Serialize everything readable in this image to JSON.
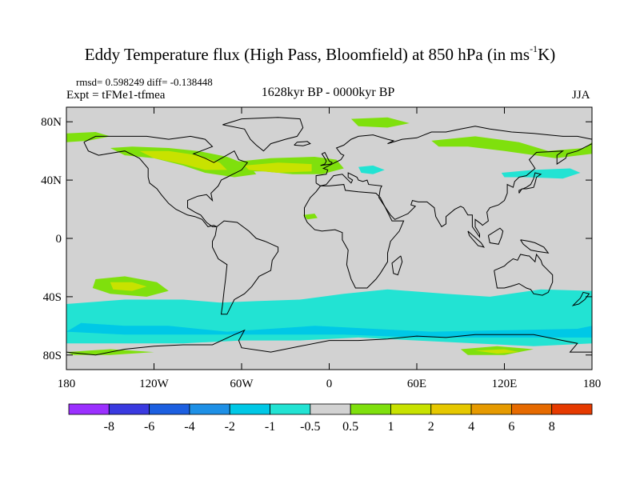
{
  "title": {
    "main": "Eddy Temperature flux (High Pass, Bloomfield) at 850 hPa (in ms",
    "sup": "-1",
    "end": "K)"
  },
  "stats": "rmsd= 0.598249 diff= -0.138448",
  "expt": "Expt = tFMe1-tfmea",
  "period": "1628kyr BP - 0000kyr BP",
  "season": "JJA",
  "map": {
    "lat_range": [
      -90,
      90
    ],
    "lon_range": [
      -180,
      180
    ],
    "lat_ticks": [
      {
        "value": 80,
        "label": "80N"
      },
      {
        "value": 40,
        "label": "40N"
      },
      {
        "value": 0,
        "label": "0"
      },
      {
        "value": -40,
        "label": "40S"
      },
      {
        "value": -80,
        "label": "80S"
      }
    ],
    "lon_ticks": [
      {
        "value": -180,
        "label": "180"
      },
      {
        "value": -120,
        "label": "120W"
      },
      {
        "value": -60,
        "label": "60W"
      },
      {
        "value": 0,
        "label": "0"
      },
      {
        "value": 60,
        "label": "60E"
      },
      {
        "value": 120,
        "label": "120E"
      },
      {
        "value": 180,
        "label": "180"
      }
    ],
    "background_color": "#d2d2d2",
    "coast_color": "#000000"
  },
  "colorbar": {
    "colors": [
      "#9b30ff",
      "#3a3ae0",
      "#1c5fe0",
      "#1e90e6",
      "#00c8e6",
      "#22e3d3",
      "#d2d2d2",
      "#7fe00d",
      "#c8e200",
      "#e6c800",
      "#e69a00",
      "#e66a00",
      "#e63a00"
    ],
    "labels": [
      "-8",
      "-6",
      "-4",
      "-2",
      "-1",
      "-0.5",
      "0.5",
      "1",
      "2",
      "4",
      "6",
      "8"
    ]
  },
  "regions": [
    {
      "name": "north-america-high",
      "level": "1",
      "color": "#7fe00d",
      "points": [
        [
          -150,
          62
        ],
        [
          -135,
          63
        ],
        [
          -110,
          62
        ],
        [
          -90,
          60
        ],
        [
          -70,
          56
        ],
        [
          -55,
          50
        ],
        [
          -50,
          44
        ],
        [
          -65,
          42
        ],
        [
          -85,
          45
        ],
        [
          -100,
          50
        ],
        [
          -120,
          55
        ],
        [
          -140,
          57
        ]
      ]
    },
    {
      "name": "north-america-core",
      "level": "2",
      "color": "#c8e200",
      "points": [
        [
          -130,
          60
        ],
        [
          -110,
          60
        ],
        [
          -90,
          57
        ],
        [
          -75,
          52
        ],
        [
          -70,
          47
        ],
        [
          -85,
          47
        ],
        [
          -100,
          51
        ],
        [
          -120,
          55
        ]
      ]
    },
    {
      "name": "north-atlantic-high",
      "level": "1",
      "color": "#7fe00d",
      "points": [
        [
          -70,
          52
        ],
        [
          -40,
          55
        ],
        [
          -10,
          56
        ],
        [
          5,
          54
        ],
        [
          10,
          48
        ],
        [
          -5,
          44
        ],
        [
          -25,
          44
        ],
        [
          -45,
          46
        ],
        [
          -62,
          46
        ]
      ]
    },
    {
      "name": "north-atlantic-core",
      "level": "2",
      "color": "#c8e200",
      "points": [
        [
          -58,
          50
        ],
        [
          -35,
          52
        ],
        [
          -12,
          51
        ],
        [
          -12,
          46
        ],
        [
          -35,
          45
        ],
        [
          -55,
          47
        ]
      ]
    },
    {
      "name": "arctic-west",
      "level": "1",
      "color": "#7fe00d",
      "points": [
        [
          -180,
          72
        ],
        [
          -160,
          73
        ],
        [
          -150,
          70
        ],
        [
          -165,
          67
        ],
        [
          -180,
          66
        ]
      ]
    },
    {
      "name": "arctic-scandinavia",
      "level": "1",
      "color": "#7fe00d",
      "points": [
        [
          15,
          82
        ],
        [
          40,
          83
        ],
        [
          55,
          79
        ],
        [
          40,
          76
        ],
        [
          20,
          77
        ]
      ]
    },
    {
      "name": "siberia-band",
      "level": "1",
      "color": "#7fe00d",
      "points": [
        [
          70,
          67
        ],
        [
          100,
          70
        ],
        [
          130,
          66
        ],
        [
          150,
          60
        ],
        [
          175,
          62
        ],
        [
          180,
          66
        ],
        [
          180,
          58
        ],
        [
          155,
          55
        ],
        [
          120,
          60
        ],
        [
          95,
          63
        ],
        [
          75,
          63
        ]
      ]
    },
    {
      "name": "pacific-nw-flux",
      "level": "-1",
      "color": "#22e3d3",
      "points": [
        [
          118,
          45
        ],
        [
          140,
          47
        ],
        [
          165,
          48
        ],
        [
          172,
          45
        ],
        [
          160,
          41
        ],
        [
          135,
          42
        ],
        [
          120,
          42
        ]
      ]
    },
    {
      "name": "atlantic-neg",
      "level": "-1",
      "color": "#22e3d3",
      "points": [
        [
          20,
          49
        ],
        [
          30,
          50
        ],
        [
          38,
          47
        ],
        [
          30,
          44
        ],
        [
          22,
          45
        ]
      ]
    },
    {
      "name": "west-african-flux",
      "level": "1",
      "color": "#7fe00d",
      "points": [
        [
          -18,
          16
        ],
        [
          -10,
          17
        ],
        [
          -8,
          14
        ],
        [
          -15,
          13
        ]
      ]
    },
    {
      "name": "south-pacific-high",
      "level": "1",
      "color": "#7fe00d",
      "points": [
        [
          -160,
          -28
        ],
        [
          -140,
          -26
        ],
        [
          -118,
          -30
        ],
        [
          -110,
          -36
        ],
        [
          -125,
          -40
        ],
        [
          -150,
          -38
        ],
        [
          -162,
          -34
        ]
      ]
    },
    {
      "name": "south-pacific-core",
      "level": "2",
      "color": "#c8e200",
      "points": [
        [
          -150,
          -30
        ],
        [
          -135,
          -30
        ],
        [
          -125,
          -33
        ],
        [
          -135,
          -36
        ],
        [
          -148,
          -35
        ]
      ]
    },
    {
      "name": "southern-ocean-band",
      "level": "-1",
      "color": "#22e3d3",
      "points": [
        [
          -180,
          -45
        ],
        [
          -140,
          -42
        ],
        [
          -100,
          -42
        ],
        [
          -75,
          -44
        ],
        [
          -50,
          -43
        ],
        [
          -20,
          -42
        ],
        [
          10,
          -38
        ],
        [
          40,
          -35
        ],
        [
          80,
          -38
        ],
        [
          110,
          -40
        ],
        [
          145,
          -35
        ],
        [
          180,
          -36
        ],
        [
          180,
          -72
        ],
        [
          140,
          -74
        ],
        [
          100,
          -72
        ],
        [
          60,
          -70
        ],
        [
          20,
          -68
        ],
        [
          -20,
          -70
        ],
        [
          -60,
          -70
        ],
        [
          -100,
          -72
        ],
        [
          -140,
          -72
        ],
        [
          -180,
          -72
        ]
      ]
    },
    {
      "name": "southern-ocean-strong",
      "level": "-2",
      "color": "#00c8e6",
      "points": [
        [
          -170,
          -58
        ],
        [
          -140,
          -60
        ],
        [
          -110,
          -60
        ],
        [
          -90,
          -62
        ],
        [
          -70,
          -64
        ],
        [
          -40,
          -62
        ],
        [
          -10,
          -60
        ],
        [
          30,
          -62
        ],
        [
          70,
          -64
        ],
        [
          120,
          -63
        ],
        [
          170,
          -62
        ],
        [
          180,
          -60
        ],
        [
          180,
          -68
        ],
        [
          120,
          -68
        ],
        [
          60,
          -68
        ],
        [
          10,
          -66
        ],
        [
          -40,
          -66
        ],
        [
          -90,
          -66
        ],
        [
          -140,
          -66
        ],
        [
          -180,
          -64
        ]
      ]
    },
    {
      "name": "antarctic-coast-high-east",
      "level": "1",
      "color": "#7fe00d",
      "points": [
        [
          90,
          -76
        ],
        [
          115,
          -74
        ],
        [
          140,
          -76
        ],
        [
          120,
          -80
        ],
        [
          95,
          -80
        ]
      ]
    },
    {
      "name": "antarctic-coast-high-core",
      "level": "2",
      "color": "#c8e200",
      "points": [
        [
          100,
          -77
        ],
        [
          120,
          -76
        ],
        [
          130,
          -78
        ],
        [
          115,
          -79
        ]
      ]
    },
    {
      "name": "antarctic-coast-high-west",
      "level": "1",
      "color": "#7fe00d",
      "points": [
        [
          -180,
          -78
        ],
        [
          -150,
          -76
        ],
        [
          -120,
          -78
        ],
        [
          -150,
          -80
        ],
        [
          -175,
          -80
        ]
      ]
    }
  ]
}
